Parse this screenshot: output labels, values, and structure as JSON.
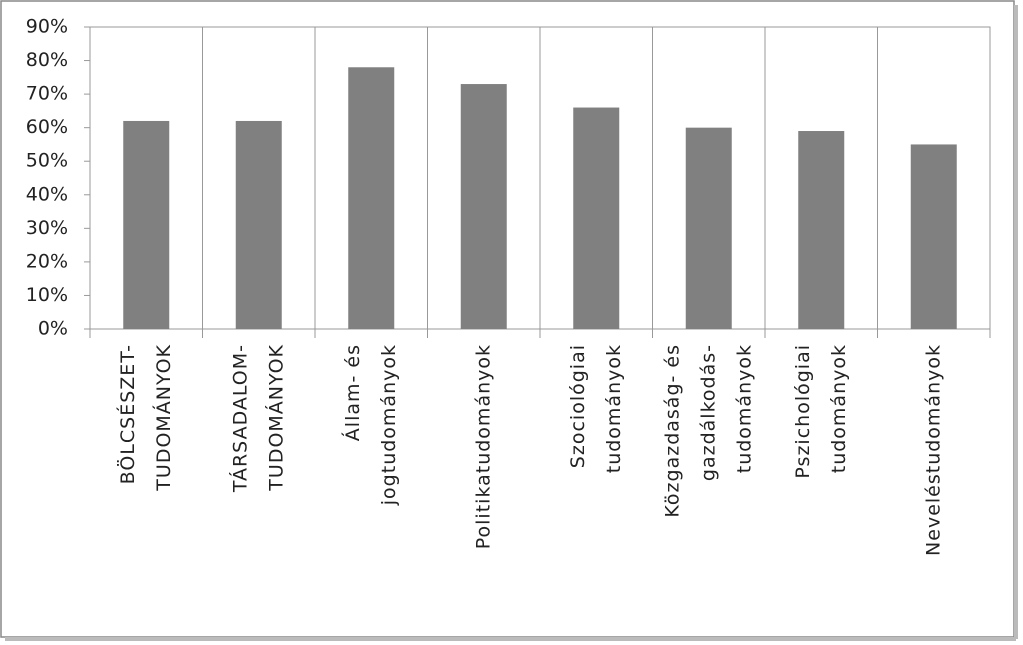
{
  "chart_data": {
    "type": "bar",
    "categories": [
      [
        "BÖLCSÉSZET-",
        "TUDOMÁNYOK"
      ],
      [
        "TÁRSADALOM-",
        "TUDOMÁNYOK"
      ],
      [
        "Állam- és",
        "jogtudományok"
      ],
      [
        "Politikatudományok"
      ],
      [
        "Szociológiai",
        "tudományok"
      ],
      [
        "Közgazdaság- és",
        "gazdálkodás-",
        "tudományok"
      ],
      [
        "Pszichológiai",
        "tudományok"
      ],
      [
        "Neveléstudományok"
      ]
    ],
    "values": [
      62,
      62,
      78,
      73,
      66,
      60,
      59,
      55
    ],
    "color": "#808080",
    "ylim": [
      0,
      90
    ],
    "yticks": [
      {
        "value": 0,
        "label": "0%"
      },
      {
        "value": 10,
        "label": "10%"
      },
      {
        "value": 20,
        "label": "20%"
      },
      {
        "value": 30,
        "label": "30%"
      },
      {
        "value": 40,
        "label": "40%"
      },
      {
        "value": 50,
        "label": "50%"
      },
      {
        "value": 60,
        "label": "60%"
      },
      {
        "value": 70,
        "label": "70%"
      },
      {
        "value": 80,
        "label": "80%"
      },
      {
        "value": 90,
        "label": "90%"
      }
    ]
  }
}
